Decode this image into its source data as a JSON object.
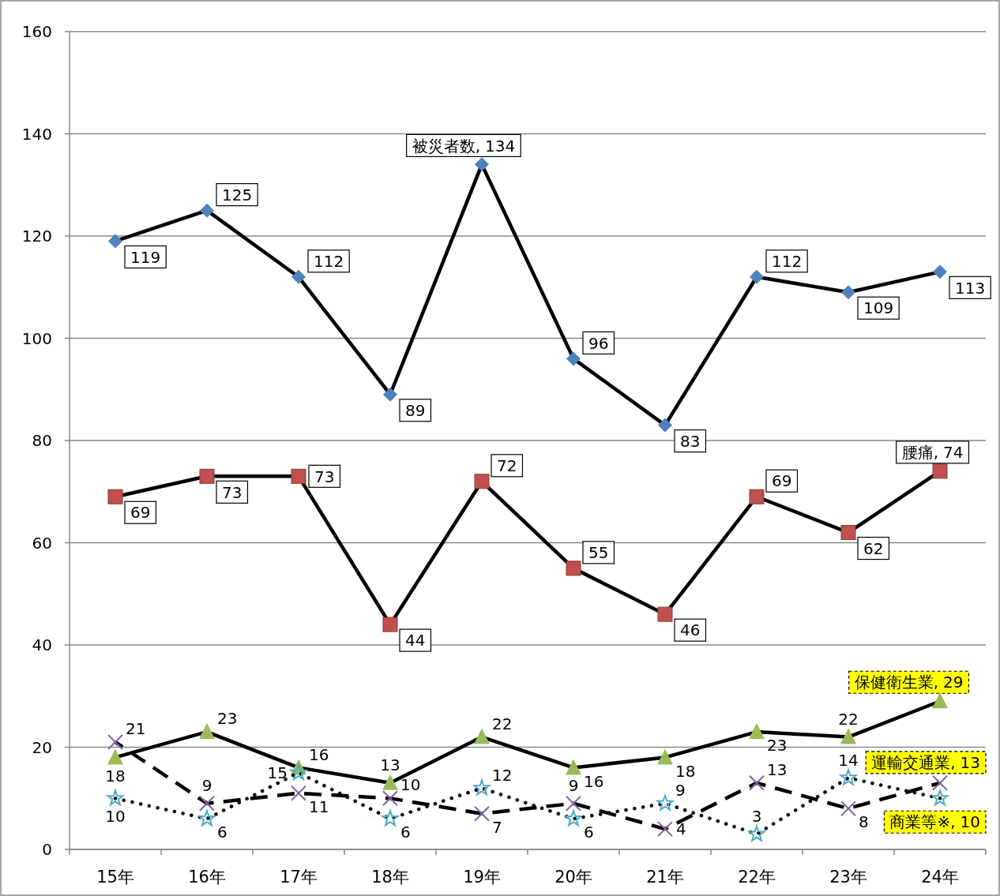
{
  "chart_data": {
    "type": "line",
    "categories": [
      "15年",
      "16年",
      "17年",
      "18年",
      "19年",
      "20年",
      "21年",
      "22年",
      "23年",
      "24年"
    ],
    "ylim": [
      0,
      160
    ],
    "yticks": [
      0,
      20,
      40,
      60,
      80,
      100,
      120,
      140,
      160
    ],
    "grid": "y",
    "data_labels": true,
    "annotations": [
      {
        "text": "被災者数,",
        "x": "19年",
        "y": 134
      },
      {
        "text": "腰痛,",
        "x": "24年",
        "y": 74
      },
      {
        "text": "保健衛生業,",
        "x": "24年",
        "y": 29
      },
      {
        "text": "運輸交通業,",
        "x": "24年",
        "y": 13
      },
      {
        "text": "商業等※,",
        "x": "24年",
        "y": 10
      }
    ],
    "series": [
      {
        "color": "#4f81bd",
        "marker": "diamond",
        "line_style": "solid",
        "values": [
          119,
          125,
          112,
          89,
          134,
          96,
          83,
          112,
          109,
          113
        ]
      },
      {
        "color": "#c0504d",
        "marker": "square",
        "line_style": "solid",
        "values": [
          69,
          73,
          73,
          44,
          72,
          55,
          46,
          69,
          62,
          74
        ]
      },
      {
        "color": "#9bbb59",
        "marker": "triangle",
        "line_style": "solid",
        "values": [
          18,
          23,
          16,
          13,
          22,
          16,
          18,
          23,
          22,
          29
        ]
      },
      {
        "color": "#8064a2",
        "marker": "cross",
        "line_style": "dashed",
        "values": [
          21,
          9,
          11,
          10,
          7,
          9,
          4,
          13,
          8,
          13
        ]
      },
      {
        "color": "#4bacc6",
        "marker": "star",
        "line_style": "dotted",
        "values": [
          10,
          6,
          15,
          6,
          12,
          6,
          9,
          3,
          14,
          10
        ]
      }
    ]
  }
}
